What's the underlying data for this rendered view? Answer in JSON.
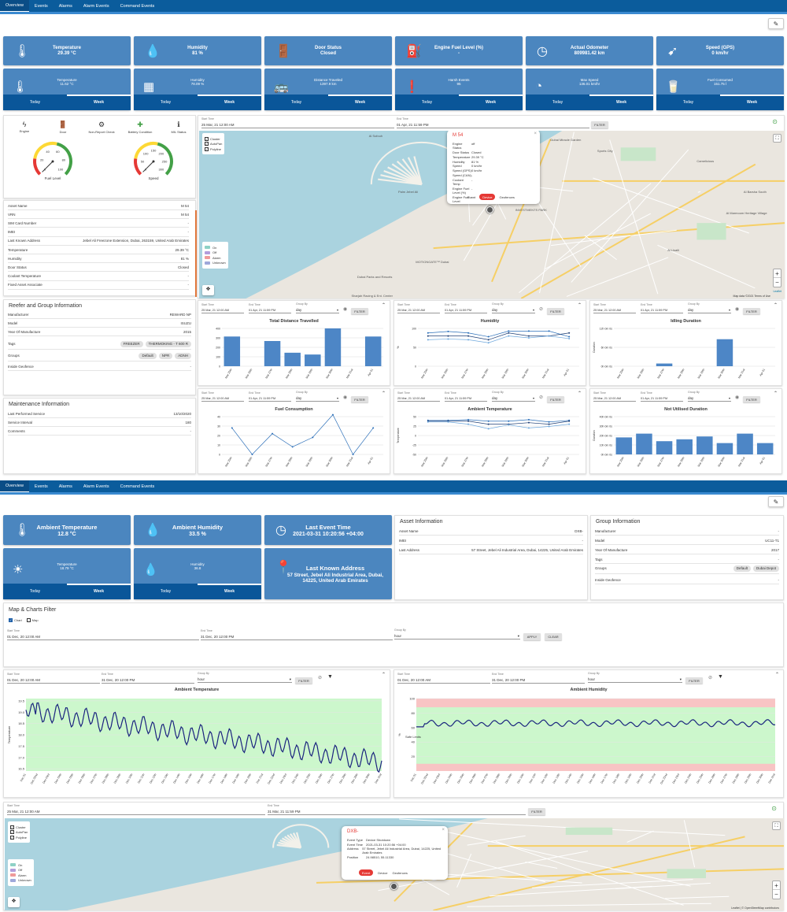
{
  "nav": {
    "tabs": [
      "Overview",
      "Events",
      "Alarms",
      "Alarm Events",
      "Command Events"
    ]
  },
  "top_cards": [
    {
      "icon": "thermometer-icon",
      "title": "Temperature",
      "value": "29.39 °C"
    },
    {
      "icon": "humidity-icon",
      "title": "Humidity",
      "value": "81 %"
    },
    {
      "icon": "door-icon",
      "title": "Door Status",
      "value": "Closed"
    },
    {
      "icon": "fuel-pump-icon",
      "title": "Engine Fuel Level (%)",
      "value": "-"
    },
    {
      "icon": "odometer-icon",
      "title": "Actual Odometer",
      "value": "809981.42 km"
    },
    {
      "icon": "speed-icon",
      "title": "Speed (GPS)",
      "value": "0 km/hr"
    }
  ],
  "stat_cards": [
    {
      "icon": "thermometer-icon",
      "title": "Temperature",
      "value": "11.62 °C"
    },
    {
      "icon": "humidity-pattern-icon",
      "title": "Humidity",
      "value": "78.09 %"
    },
    {
      "icon": "truck-icon",
      "title": "Distance Traveled",
      "value": "1397.9 km"
    },
    {
      "icon": "alert-icon",
      "title": "Harsh Events",
      "value": "95"
    },
    {
      "icon": "gauge-icon",
      "title": "Max Speed",
      "value": "136.01 km/hr"
    },
    {
      "icon": "fuel-cup-icon",
      "title": "Fuel Consumed",
      "value": "151.75 l"
    }
  ],
  "today_label": "Today",
  "week_label": "Week",
  "status_icons": [
    {
      "label": "Engine",
      "icon": "bolt-icon",
      "color": "#333"
    },
    {
      "label": "Door",
      "icon": "door-icon",
      "color": "#43a047"
    },
    {
      "label": "Non-Report Check",
      "icon": "settings-icon",
      "color": "#333"
    },
    {
      "label": "Battery Condition",
      "icon": "plus-box-icon",
      "color": "#43a047"
    },
    {
      "label": "MIL Status",
      "icon": "info-icon",
      "color": "#333"
    }
  ],
  "gauges": [
    {
      "label": "Fuel Level",
      "ticks": [
        "0",
        "20",
        "40",
        "60",
        "80",
        "100"
      ],
      "value": 0
    },
    {
      "label": "Speed",
      "ticks": [
        "0",
        "50",
        "100",
        "150",
        "200",
        "250",
        "300"
      ],
      "value": 0
    }
  ],
  "asset_rows": [
    [
      "Asset Name",
      "M 54"
    ],
    [
      "VRN",
      "M 54"
    ],
    [
      "SIM Card Number",
      "-"
    ],
    [
      "IMEI",
      "-"
    ],
    [
      "Last Known Address",
      "Jebel Ali Freezone Extension, Dubai, 263159, United Arab Emirates"
    ],
    [
      "Temperature",
      "29.39 °C"
    ],
    [
      "Humidity",
      "81 %"
    ],
    [
      "Door Status",
      "Closed"
    ],
    [
      "Coolant Temperature",
      "-"
    ],
    [
      "Fixed Asset Associate",
      "-"
    ]
  ],
  "reefer": {
    "title": "Reefer and Group Information",
    "rows": [
      [
        "Manufacturer",
        "REWARD NP"
      ],
      [
        "Model",
        "ISUZU"
      ],
      [
        "Year Of Manufacture",
        "2015"
      ]
    ],
    "tags_label": "Tags",
    "tags": [
      "FREEZER",
      "THERMOKING - T 600 R"
    ],
    "groups_label": "Groups",
    "groups": [
      "Default",
      "NPR",
      "ADNH"
    ],
    "geofence_label": "Inside Geofence",
    "geofence": "-"
  },
  "maintenance": {
    "title": "Maintenance Information",
    "rows": [
      [
        "Last Performed Service",
        "13/10/2020"
      ],
      [
        "Service Interval",
        "180"
      ],
      [
        "Comments",
        "-"
      ]
    ]
  },
  "filter1": {
    "start_label": "Start Time",
    "start": "25 Mar, 21 12:00 AM",
    "end_label": "End Time",
    "end": "01 Apr, 21 11:59 PM",
    "btn": "FILTER"
  },
  "map1": {
    "layers": [
      "Cluster",
      "AutoPan",
      "Polyline"
    ],
    "legend": [
      {
        "label": "On",
        "color": "#8ed1c6"
      },
      {
        "label": "Off",
        "color": "#b39ddb"
      },
      {
        "label": "Alarm",
        "color": "#ef9a9a"
      },
      {
        "label": "Unknown",
        "color": "#9fa8da"
      }
    ],
    "attribution": "Leaflet",
    "copyright": "Map data ©2021   Terms of Use",
    "places": [
      "Palm Jebel Ali",
      "Dubai Miracle Garden",
      "Sports City",
      "Camelicious",
      "Al Barsha South",
      "Al Marmoom Heritage Village",
      "Al Sufouh",
      "Al Lisaili",
      "INVESTMENTS PARK",
      "MOTIONGATE™ Dubai",
      "Dubai Parks and Resorts",
      "Sharjah Racing & Ent. Center"
    ],
    "popup": {
      "title": "M 54",
      "rows": [
        [
          "Engine Status",
          "off"
        ],
        [
          "Door Status",
          "Closed"
        ],
        [
          "Temperature",
          "29.39 °C"
        ],
        [
          "Humidity",
          "81 %"
        ],
        [
          "Speed",
          "0 km/hr"
        ],
        [
          "Speed (GPS)",
          "0 km/hr"
        ],
        [
          "Speed (CAN)",
          "-"
        ],
        [
          "Coolant Temp",
          "-"
        ],
        [
          "Engine Fuel Level (%)",
          "-"
        ],
        [
          "Engine Fuel Level",
          "-"
        ]
      ],
      "tabs": [
        "Event",
        "Device",
        "Geofences"
      ]
    }
  },
  "chart_groupby": {
    "label": "Group By",
    "value": "day"
  },
  "week_days": [
    "Mar 25th",
    "Mar 26th",
    "Mar 27th",
    "Mar 28th",
    "Mar 29th",
    "Mar 30th",
    "Mar 31st",
    "Apr 01"
  ],
  "chart_data": [
    {
      "type": "bar",
      "title": "Total Distance Travelled",
      "categories": [
        "Mar 25th",
        "Mar 26th",
        "Mar 27th",
        "Mar 28th",
        "Mar 29th",
        "Mar 30th",
        "Mar 31st",
        "Apr 01"
      ],
      "values": [
        330,
        0,
        280,
        150,
        130,
        420,
        0,
        330
      ],
      "yticks": [
        "0",
        "100",
        "200",
        "300",
        "400"
      ],
      "ylim": [
        0,
        420
      ]
    },
    {
      "type": "line",
      "title": "Humidity",
      "categories": [
        "Mar 25th",
        "Mar 26th",
        "Mar 27th",
        "Mar 28th",
        "Mar 29th",
        "Mar 30th",
        "Mar 31st",
        "Apr 01"
      ],
      "ylabel": "%",
      "yticks": [
        "0",
        "50",
        "100"
      ],
      "ylim": [
        0,
        100
      ],
      "series": [
        {
          "values": [
            88,
            92,
            88,
            78,
            93,
            93,
            93,
            78
          ]
        },
        {
          "values": [
            80,
            80,
            80,
            70,
            88,
            80,
            80,
            88
          ]
        },
        {
          "values": [
            70,
            72,
            70,
            62,
            80,
            75,
            80,
            73
          ]
        }
      ]
    },
    {
      "type": "bar",
      "title": "Idling Duration",
      "categories": [
        "Mar 25th",
        "Mar 26th",
        "Mar 27th",
        "Mar 28th",
        "Mar 29th",
        "Mar 30th",
        "Mar 31st",
        "Apr 01"
      ],
      "ylabel": "Duration",
      "values": [
        0,
        0,
        1,
        0,
        0,
        10,
        0,
        0
      ],
      "yticks": [
        "0h 0m 0s",
        "6h 0m 0s",
        "12h 0m 0s"
      ],
      "ylim": [
        0,
        14
      ]
    },
    {
      "type": "line",
      "title": "Fuel Consumption",
      "categories": [
        "Mar 25th",
        "Mar 26th",
        "Mar 27th",
        "Mar 28th",
        "Mar 29th",
        "Mar 30th",
        "Mar 31st",
        "Apr 01"
      ],
      "yticks": [
        "0",
        "10",
        "20",
        "30",
        "40"
      ],
      "ylim": [
        0,
        40
      ],
      "series": [
        {
          "values": [
            28,
            0,
            22,
            8,
            18,
            42,
            0,
            28
          ]
        }
      ]
    },
    {
      "type": "line",
      "title": "Ambient Temperature",
      "categories": [
        "Mar 25th",
        "Mar 26th",
        "Mar 27th",
        "Mar 28th",
        "Mar 29th",
        "Mar 30th",
        "Mar 31st",
        "Apr 01"
      ],
      "ylabel": "Temperature",
      "yticks": [
        "-50",
        "-25",
        "0",
        "25",
        "50"
      ],
      "ylim": [
        -50,
        50
      ],
      "series": [
        {
          "values": [
            40,
            40,
            42,
            38,
            38,
            42,
            36,
            40
          ]
        },
        {
          "values": [
            38,
            38,
            38,
            30,
            30,
            34,
            30,
            38
          ]
        },
        {
          "values": [
            36,
            36,
            30,
            18,
            28,
            20,
            24,
            30
          ]
        }
      ]
    },
    {
      "type": "bar",
      "title": "Not Utilised Duration",
      "categories": [
        "Mar 25th",
        "Mar 26th",
        "Mar 27th",
        "Mar 28th",
        "Mar 29th",
        "Mar 30th",
        "Mar 31st",
        "Apr 01"
      ],
      "ylabel": "Duration",
      "values": [
        18,
        22,
        14,
        16,
        19,
        12,
        22,
        12
      ],
      "yticks": [
        "0h 0m 0s",
        "10h 0m 0s",
        "20h 0m 0s",
        "30h 0m 0s",
        "40h 0m 0s"
      ],
      "ylim": [
        0,
        40
      ]
    },
    {
      "type": "line",
      "title": "Ambient Temperature",
      "ylabel": "Temperature",
      "yticks": [
        "16.5",
        "17.0",
        "17.5",
        "18.0",
        "18.5",
        "19.0",
        "19.5"
      ],
      "ylim": [
        16.4,
        19.6
      ],
      "safe_band": [
        16.4,
        19.6
      ],
      "xticks": [
        "Dec 01",
        "Dec 02nd",
        "Dec 03rd",
        "Dec 04th",
        "Dec 05th",
        "Dec 06th",
        "Dec 07th",
        "Dec 08th",
        "Dec 09th",
        "Dec 10th",
        "Dec 11th",
        "Dec 12th",
        "Dec 13th",
        "Dec 14th",
        "Dec 15th",
        "Dec 16th",
        "Dec 17th",
        "Dec 18th",
        "Dec 19th",
        "Dec 20th",
        "Dec 21st",
        "Dec 22nd",
        "Dec 23rd",
        "Dec 24th",
        "Dec 25th",
        "Dec 26th",
        "Dec 27th",
        "Dec 28th",
        "Dec 29th",
        "Dec 30th",
        "Dec 31st"
      ],
      "series": [
        {
          "start": 19.1,
          "end": 16.8
        }
      ]
    },
    {
      "type": "line",
      "title": "Ambient Humidity",
      "ylabel": "%",
      "y2label": "Safe Limits",
      "yticks": [
        "20",
        "40",
        "60",
        "80",
        "100"
      ],
      "ylim": [
        0,
        100
      ],
      "safe_band": [
        10,
        88
      ],
      "xticks": [
        "Dec 01",
        "Dec 02nd",
        "Dec 03rd",
        "Dec 04th",
        "Dec 05th",
        "Dec 06th",
        "Dec 07th",
        "Dec 08th",
        "Dec 09th",
        "Dec 10th",
        "Dec 11th",
        "Dec 12th",
        "Dec 13th",
        "Dec 14th",
        "Dec 15th",
        "Dec 16th",
        "Dec 17th",
        "Dec 18th",
        "Dec 19th",
        "Dec 20th",
        "Dec 21st",
        "Dec 22nd",
        "Dec 23rd",
        "Dec 24th",
        "Dec 25th",
        "Dec 26th",
        "Dec 27th",
        "Dec 28th",
        "Dec 29th",
        "Dec 30th",
        "Dec 31st"
      ],
      "series": [
        {
          "level": 66
        }
      ]
    }
  ],
  "p2_cards": [
    {
      "icon": "thermometer-icon",
      "title": "Ambient Temperature",
      "value": "12.8 °C"
    },
    {
      "icon": "humidity-icon",
      "title": "Ambient Humidity",
      "value": "33.5 %"
    },
    {
      "icon": "clock-icon",
      "title": "Last Event Time",
      "value": "2021-03-31 10:20:56 +04:00"
    }
  ],
  "p2_stat": [
    {
      "icon": "sun-icon",
      "title": "Temperature",
      "value": "18.79 °C"
    },
    {
      "icon": "drop-icon",
      "title": "Humidity",
      "value": "36.8"
    }
  ],
  "p2_address": {
    "icon": "pin-icon",
    "title": "Last Known Address",
    "value": "57 Street, Jebel Ali Industrial Area, Dubai, 14225, United Arab Emirates"
  },
  "asset_info": {
    "title": "Asset Information",
    "rows": [
      [
        "Asset Name",
        "DXB-"
      ],
      [
        "IMEI",
        "-"
      ],
      [
        "Last Address",
        "57 Street, Jebel Ali Industrial Area, Dubai, 14225, United Arab Emirates"
      ]
    ]
  },
  "group_info": {
    "title": "Group Information",
    "rows": [
      [
        "Manufacturer",
        "-"
      ],
      [
        "Model",
        "UC11-T1"
      ],
      [
        "Year Of Manufacture",
        "2017"
      ],
      [
        "Tags",
        "-"
      ]
    ],
    "groups_label": "Groups",
    "groups": [
      "Default",
      "Dubai Depot"
    ],
    "geofence_label": "Inside Geofence",
    "geofence": "-"
  },
  "map_chart_filter": {
    "title": "Map & Charts Filter",
    "chart": "Chart",
    "map": "Map",
    "start_label": "Start Time",
    "start": "01 Dec, 20 12:00 AM",
    "end_label": "End Time",
    "end": "31 Dec, 20 12:00 PM",
    "groupby_label": "Group By",
    "groupby": "hour",
    "apply": "APPLY",
    "clear": "CLEAR"
  },
  "filter2": {
    "start": "01 Dec, 20 12:00 AM",
    "end": "31 Dec, 20 12:00 PM",
    "groupby": "hour",
    "btn": "FILTER"
  },
  "filter3": {
    "start_label": "Start Time",
    "start": "25 Mar, 21 12:00 AM",
    "end_label": "End Time",
    "end": "31 Mar, 21 11:59 PM",
    "btn": "FILTER"
  },
  "map2": {
    "popup": {
      "title": "DXB-",
      "rows": [
        [
          "Event Type",
          "Device Shutdown"
        ],
        [
          "Event Time",
          "2021-03-31 10:20:56 +04:00"
        ],
        [
          "Address",
          "57 Street, Jebel Ali Industrial Area, Dubai, 14225, United Arab Emirates"
        ],
        [
          "Position",
          "24.98510, 55.11330"
        ]
      ],
      "tabs": [
        "Event",
        "Device",
        "Geofences"
      ]
    },
    "attribution": "Leaflet | © OpenStreetMap contributors"
  }
}
